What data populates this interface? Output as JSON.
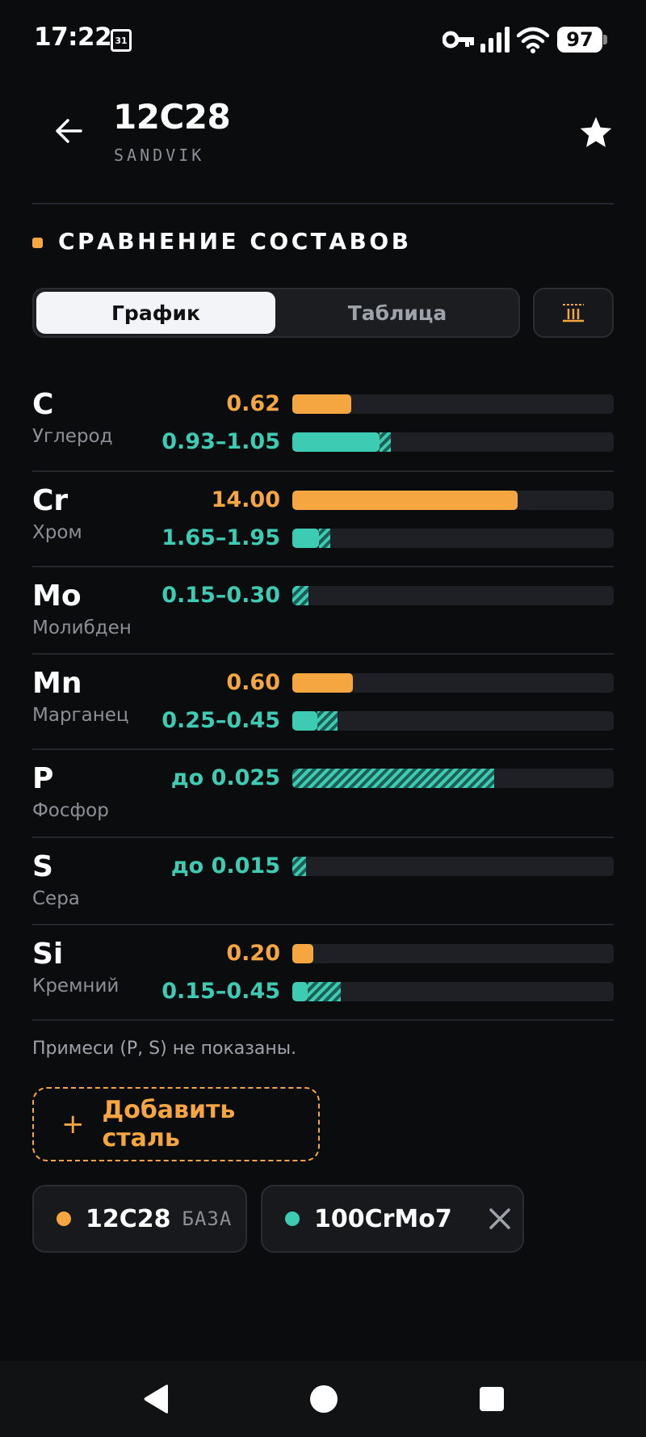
{
  "status_bar": {
    "time": "17:22",
    "calendar_day": "31",
    "battery": "97"
  },
  "header": {
    "title": "12C28",
    "subtitle": "SANDVIK"
  },
  "section": {
    "title": "СРАВНЕНИЕ СОСТАВОВ"
  },
  "toggle": {
    "chart_label": "График",
    "table_label": "Таблица"
  },
  "elements": [
    {
      "symbol": "C",
      "name": "Углерод",
      "base_value": "0.62",
      "compare_value": "0.93–1.05"
    },
    {
      "symbol": "Cr",
      "name": "Хром",
      "base_value": "14.00",
      "compare_value": "1.65–1.95"
    },
    {
      "symbol": "Mo",
      "name": "Молибден",
      "compare_value": "0.15–0.30"
    },
    {
      "symbol": "Mn",
      "name": "Марганец",
      "base_value": "0.60",
      "compare_value": "0.25–0.45"
    },
    {
      "symbol": "P",
      "name": "Фосфор",
      "compare_value": "до 0.025"
    },
    {
      "symbol": "S",
      "name": "Сера",
      "compare_value": "до 0.015"
    },
    {
      "symbol": "Si",
      "name": "Кремний",
      "base_value": "0.20",
      "compare_value": "0.15–0.45"
    }
  ],
  "note": "Примеси (P, S) не показаны.",
  "add_button": {
    "label": "Добавить сталь"
  },
  "chips": [
    {
      "name": "12C28",
      "tag": "БАЗА",
      "color": "#f5a640"
    },
    {
      "name": "100CrMo7",
      "color": "#3ecbb3"
    }
  ],
  "colors": {
    "base": "#f5a640",
    "compare": "#3ecbb3",
    "background": "#0b0c0e"
  }
}
